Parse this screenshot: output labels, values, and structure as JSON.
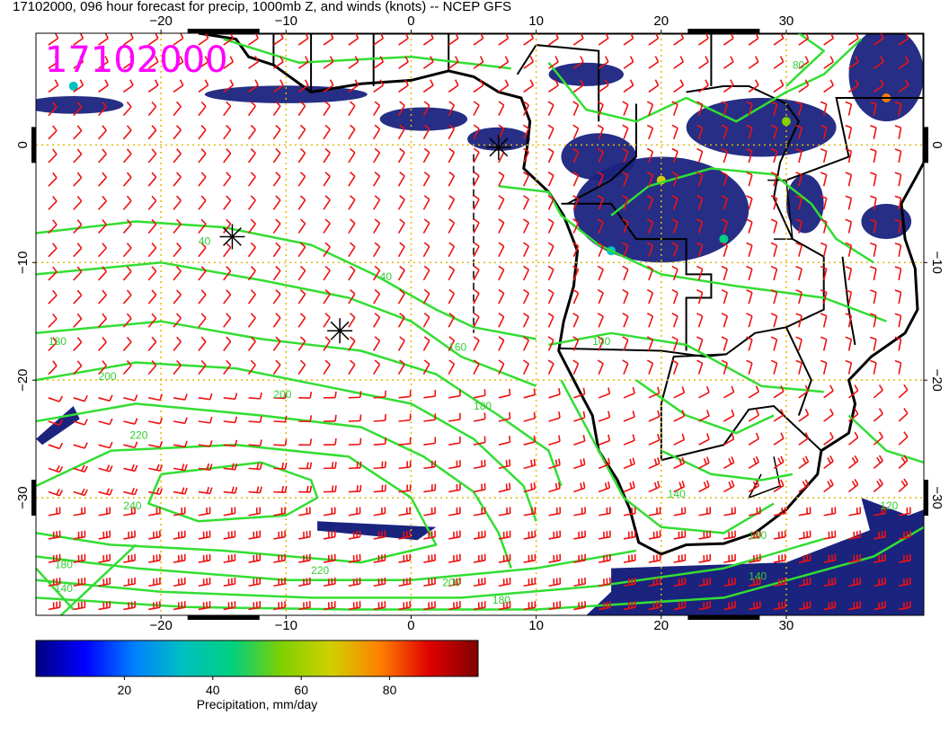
{
  "title": "17102000, 096 hour forecast for precip, 1000mb Z, and winds (knots) -- NCEP GFS",
  "stamp": "17102000",
  "map": {
    "lon_range": [
      -30,
      41
    ],
    "lat_range": [
      -40,
      9.5
    ],
    "lon_ticks": [
      -20,
      -10,
      0,
      10,
      20,
      30
    ],
    "lat_ticks": [
      0,
      -10,
      -20,
      -30
    ],
    "lon_tick_labels": [
      "−20",
      "−10",
      "0",
      "10",
      "20",
      "30"
    ],
    "lat_tick_labels": [
      "0",
      "−10",
      "−20",
      "−30"
    ],
    "grid_color": "#e6b800",
    "ocean_color": "#ffffff",
    "coast_color": "#000000",
    "contour_color": "#33dd33",
    "wind_barb_color": "#ee1111",
    "precip_color": "#1a237e",
    "contour_labels": [
      {
        "text": "240",
        "lon": -23,
        "lat": -31
      },
      {
        "text": "220",
        "lon": -22.5,
        "lat": -25
      },
      {
        "text": "200",
        "lon": -25,
        "lat": -20
      },
      {
        "text": "180",
        "lon": -29,
        "lat": -17
      },
      {
        "text": "160",
        "lon": 3,
        "lat": -17.5
      },
      {
        "text": "40",
        "lon": -17,
        "lat": -8.5
      },
      {
        "text": "40",
        "lon": -2.5,
        "lat": -11.5
      },
      {
        "text": "200",
        "lon": -11,
        "lat": -21.5
      },
      {
        "text": "180",
        "lon": 5,
        "lat": -22.5
      },
      {
        "text": "220",
        "lon": -8,
        "lat": -36.5
      },
      {
        "text": "200",
        "lon": 2.5,
        "lat": -37.5
      },
      {
        "text": "180",
        "lon": 6.5,
        "lat": -39
      },
      {
        "text": "160",
        "lon": 27,
        "lat": -33.5
      },
      {
        "text": "140",
        "lon": 27,
        "lat": -37
      },
      {
        "text": "140",
        "lon": 20.5,
        "lat": -30
      },
      {
        "text": "120",
        "lon": 37.5,
        "lat": -31
      },
      {
        "text": "80",
        "lon": 30.5,
        "lat": 6.5
      },
      {
        "text": "100",
        "lon": 14.5,
        "lat": -17
      },
      {
        "text": "180",
        "lon": -28.5,
        "lat": -36
      },
      {
        "text": "140",
        "lon": -28.5,
        "lat": -38
      }
    ],
    "storm_markers": [
      {
        "name": "marker-1",
        "lon": 7,
        "lat": -0.2
      },
      {
        "name": "marker-2",
        "lon": -14.3,
        "lat": -7.8
      },
      {
        "name": "marker-3",
        "lon": -5.7,
        "lat": -15.8
      }
    ]
  },
  "colorbar": {
    "label": "Precipitation, mm/day",
    "tick_values": [
      20,
      40,
      60,
      80
    ],
    "tick_labels": [
      "20",
      "40",
      "60",
      "80"
    ],
    "range": [
      0,
      100
    ],
    "colors": [
      "#000080",
      "#0000ff",
      "#0080ff",
      "#00c0c0",
      "#00d080",
      "#80d000",
      "#d0d000",
      "#ff8000",
      "#e00000",
      "#800000"
    ]
  }
}
